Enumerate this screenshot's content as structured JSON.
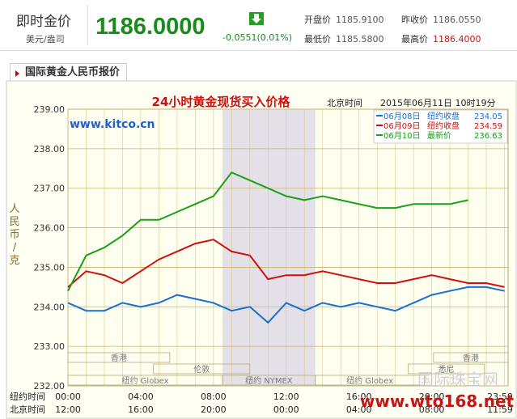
{
  "header": {
    "title": "即时金价",
    "unit": "美元/盎司",
    "price": "1186.0000",
    "change": "-0.0551(0.01%)",
    "quotes": [
      {
        "label": "开盘价",
        "value": "1185.9100"
      },
      {
        "label": "昨收价",
        "value": "1186.0550"
      },
      {
        "label": "最低价",
        "value": "1185.5800"
      },
      {
        "label": "最高价",
        "value": "1186.4000"
      }
    ]
  },
  "tab": "国际黄金人民币报价",
  "chart_data": {
    "type": "line",
    "title": "24小时黄金现货买入价格",
    "timestamp_label": "北京时间",
    "timestamp": "2015年06月11日 10时19分",
    "source": "www.kitco.cn",
    "y_label": "人民币/克",
    "watermark": "国际珠宝网",
    "watermark_url": "www.wto168.net",
    "x_row_labels": [
      "纽约时间",
      "北京时间"
    ],
    "x": [
      0,
      1,
      2,
      3,
      4,
      5,
      6,
      7,
      8,
      9,
      10,
      11,
      12,
      13,
      14,
      15,
      16,
      17,
      18,
      19,
      20,
      21,
      22,
      23,
      24
    ],
    "xlim": [
      0,
      24.2
    ],
    "xticks": [
      {
        "value": 0,
        "label": "00:00"
      },
      {
        "value": 4,
        "label": "04:00"
      },
      {
        "value": 8,
        "label": "08:00"
      },
      {
        "value": 12,
        "label": "12:00"
      },
      {
        "value": 16,
        "label": "16:00"
      },
      {
        "value": 20,
        "label": "20:00"
      },
      {
        "value": 23.98,
        "label": "23:59"
      }
    ],
    "xticks_beijing": [
      {
        "value": 0,
        "label": "12:00"
      },
      {
        "value": 4,
        "label": "16:00"
      },
      {
        "value": 8,
        "label": "20:00"
      },
      {
        "value": 12,
        "label": "00:00"
      },
      {
        "value": 16,
        "label": "04:00"
      },
      {
        "value": 20,
        "label": "08:00"
      },
      {
        "value": 23.98,
        "label": "11:59"
      }
    ],
    "ylim": [
      232,
      239
    ],
    "yticks": [
      {
        "value": 232,
        "label": "232.00"
      },
      {
        "value": 233,
        "label": "233.00"
      },
      {
        "value": 234,
        "label": "234.00"
      },
      {
        "value": 235,
        "label": "235.00"
      },
      {
        "value": 236,
        "label": "236.00"
      },
      {
        "value": 237,
        "label": "237.00"
      },
      {
        "value": 238,
        "label": "238.00"
      },
      {
        "value": 239,
        "label": "239.00"
      }
    ],
    "grid": true,
    "shaded_xrange": [
      8.5,
      13.6
    ],
    "sessions": [
      {
        "name": "香港",
        "start": 0,
        "end": 5.6,
        "row": 0
      },
      {
        "name": "伦敦",
        "start": 4.7,
        "end": 10,
        "row": 1
      },
      {
        "name": "纽约 Globex",
        "start": 0,
        "end": 8.5,
        "row": 2
      },
      {
        "name": "纽约 NYMEX",
        "start": 8.5,
        "end": 13.6,
        "row": 2
      },
      {
        "name": "纽约 Globex",
        "start": 13.6,
        "end": 19.6,
        "row": 2
      },
      {
        "name": "悉尼",
        "start": 18.7,
        "end": 22.9,
        "row": 1
      },
      {
        "name": "香港",
        "start": 20.1,
        "end": 24.2,
        "row": 0
      }
    ],
    "series": [
      {
        "name": "06月08日",
        "legend_label": "纽约收盘",
        "legend_value": 234.05,
        "color": "#1a6fd0",
        "values": [
          234.1,
          233.9,
          233.9,
          234.1,
          234.0,
          234.1,
          234.3,
          234.2,
          234.1,
          233.9,
          234.0,
          233.6,
          234.1,
          233.9,
          234.1,
          234.0,
          234.1,
          234.0,
          233.9,
          234.1,
          234.3,
          234.4,
          234.5,
          234.5,
          234.4
        ]
      },
      {
        "name": "06月09日",
        "legend_label": "纽约收盘",
        "legend_value": 234.59,
        "color": "#d01010",
        "values": [
          234.5,
          234.9,
          234.8,
          234.6,
          234.9,
          235.2,
          235.4,
          235.6,
          235.7,
          235.4,
          235.3,
          234.7,
          234.8,
          234.8,
          234.9,
          234.8,
          234.7,
          234.6,
          234.6,
          234.7,
          234.8,
          234.7,
          234.6,
          234.6,
          234.5
        ]
      },
      {
        "name": "06月10日",
        "legend_label": "最新价",
        "legend_value": 236.63,
        "color": "#18a018",
        "values": [
          234.4,
          235.3,
          235.5,
          235.8,
          236.2,
          236.2,
          236.4,
          236.6,
          236.8,
          237.4,
          237.2,
          237.0,
          236.8,
          236.7,
          236.8,
          236.7,
          236.6,
          236.5,
          236.5,
          236.6,
          236.6,
          236.6,
          236.7,
          null,
          null
        ]
      }
    ]
  }
}
